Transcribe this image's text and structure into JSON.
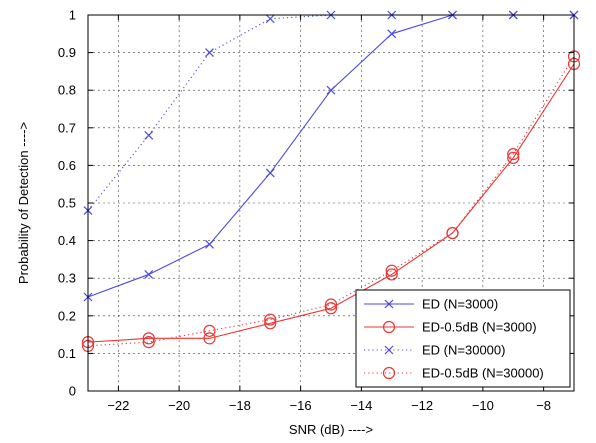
{
  "chart_data": {
    "type": "line",
    "title": "",
    "xlabel": "SNR (dB)  ---->",
    "ylabel": "Probability of Detection  ---->",
    "xlim": [
      -23,
      -7
    ],
    "ylim": [
      0,
      1
    ],
    "xticks": [
      -22,
      -20,
      -18,
      -16,
      -14,
      -12,
      -10,
      -8
    ],
    "yticks": [
      0,
      0.1,
      0.2,
      0.3,
      0.4,
      0.5,
      0.6,
      0.7,
      0.8,
      0.9,
      1
    ],
    "grid": true,
    "legend_position": "bottom-right",
    "series": [
      {
        "name": "ED (N=3000)",
        "color": "#4a4ae6",
        "line_style": "solid",
        "marker": "x",
        "x": [
          -23,
          -21,
          -19,
          -17,
          -15,
          -13,
          -11,
          -9,
          -7
        ],
        "y": [
          0.25,
          0.31,
          0.39,
          0.58,
          0.8,
          0.95,
          1.0,
          1.0,
          1.0
        ]
      },
      {
        "name": "ED-0.5dB (N=3000)",
        "color": "#ee3333",
        "line_style": "solid",
        "marker": "o",
        "x": [
          -23,
          -21,
          -19,
          -17,
          -15,
          -13,
          -11,
          -9,
          -7
        ],
        "y": [
          0.13,
          0.14,
          0.14,
          0.18,
          0.22,
          0.31,
          0.42,
          0.62,
          0.87
        ]
      },
      {
        "name": "ED (N=30000)",
        "color": "#4a4ae6",
        "line_style": "dotted",
        "marker": "x",
        "x": [
          -23,
          -21,
          -19,
          -17,
          -15,
          -13,
          -11,
          -9,
          -7
        ],
        "y": [
          0.48,
          0.68,
          0.9,
          0.99,
          1.0,
          1.0,
          1.0,
          1.0,
          1.0
        ]
      },
      {
        "name": "ED-0.5dB (N=30000)",
        "color": "#ee3333",
        "line_style": "dotted",
        "marker": "o",
        "x": [
          -23,
          -21,
          -19,
          -17,
          -15,
          -13,
          -11,
          -9,
          -7
        ],
        "y": [
          0.12,
          0.13,
          0.16,
          0.19,
          0.23,
          0.32,
          0.42,
          0.63,
          0.89
        ]
      }
    ]
  }
}
